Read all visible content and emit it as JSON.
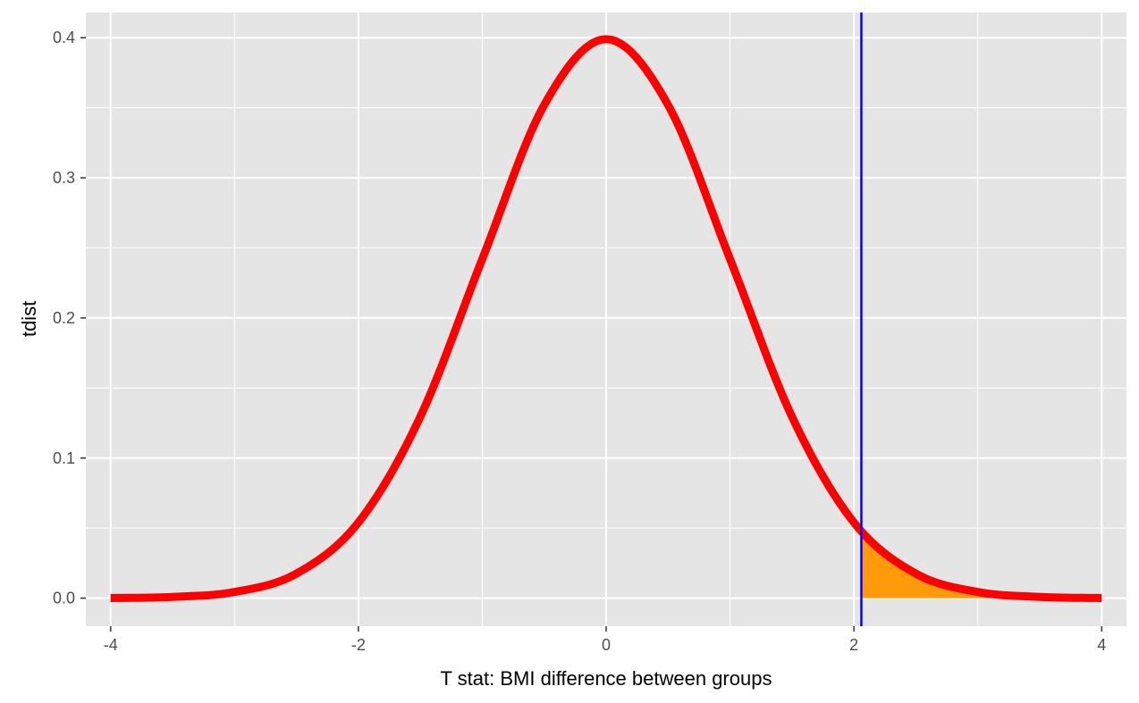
{
  "chart_data": {
    "type": "line",
    "xlabel": "T stat: BMI difference between groups",
    "ylabel": "tdist",
    "xlim": [
      -4.2,
      4.2
    ],
    "ylim": [
      -0.02,
      0.418
    ],
    "x_ticks": [
      -4,
      -2,
      0,
      2,
      4
    ],
    "x_tick_labels": [
      "-4",
      "-2",
      "0",
      "2",
      "4"
    ],
    "y_ticks": [
      0.0,
      0.1,
      0.2,
      0.3,
      0.4
    ],
    "y_tick_labels": [
      "0.0",
      "0.1",
      "0.2",
      "0.3",
      "0.4"
    ],
    "grid": true,
    "series": [
      {
        "color": "#ff0000",
        "x": [
          -4,
          -3.5,
          -3,
          -2.5,
          -2,
          -1.5,
          -1,
          -0.5,
          0,
          0.5,
          1,
          1.5,
          2,
          2.5,
          3,
          3.5,
          4
        ],
        "values": [
          0.0001,
          0.0009,
          0.0044,
          0.0175,
          0.054,
          0.1295,
          0.242,
          0.352,
          0.399,
          0.352,
          0.242,
          0.1295,
          0.054,
          0.0175,
          0.0044,
          0.0009,
          0.0001
        ]
      }
    ],
    "critical_value": 2.06,
    "shaded_region": {
      "from": 2.06,
      "to": 4,
      "color": "#ff9a0a"
    },
    "vline_color": "#0000ff",
    "panel_color": "#e5e5e5",
    "grid_color": "#ffffff"
  }
}
